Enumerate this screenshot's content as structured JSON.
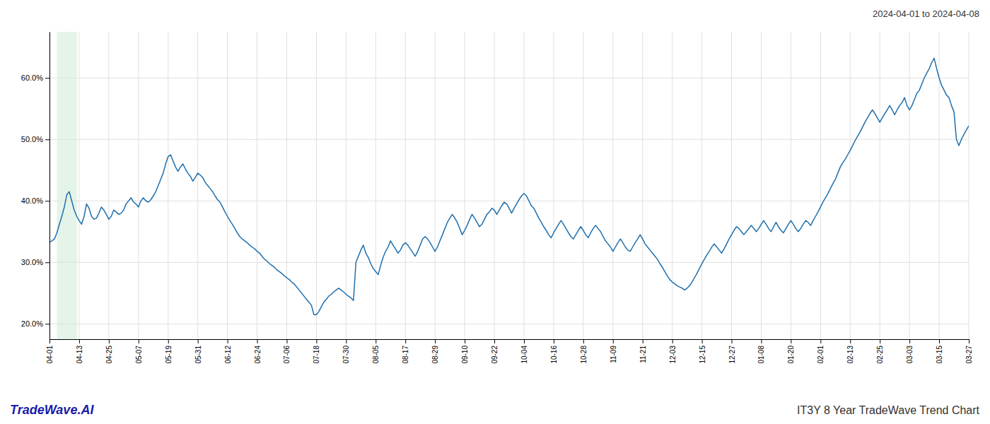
{
  "chart_data": {
    "type": "line",
    "title": "IT3Y 8 Year TradeWave Trend Chart",
    "subtitle": "2024-04-01 to 2024-04-08",
    "annotations": [
      "TradeWave.AI"
    ],
    "color": "#1f6fad",
    "grid": true,
    "ylim": [
      0.175,
      0.675
    ],
    "yticks": [
      {
        "value": 0.2,
        "label": "20.0%"
      },
      {
        "value": 0.3,
        "label": "30.0%"
      },
      {
        "value": 0.4,
        "label": "40.0%"
      },
      {
        "value": 0.5,
        "label": "50.0%"
      },
      {
        "value": 0.6,
        "label": "60.0%"
      }
    ],
    "span": [
      2.984,
      11.19
    ],
    "span_color": "#d4edda",
    "categories": [
      "04-01",
      null,
      null,
      null,
      null,
      null,
      null,
      null,
      null,
      null,
      null,
      null,
      "04-13",
      null,
      null,
      null,
      null,
      null,
      null,
      null,
      null,
      null,
      null,
      null,
      "04-25",
      null,
      null,
      null,
      null,
      null,
      null,
      null,
      null,
      null,
      null,
      null,
      "05-07",
      null,
      null,
      null,
      null,
      null,
      null,
      null,
      null,
      null,
      null,
      null,
      "05-19",
      null,
      null,
      null,
      null,
      null,
      null,
      null,
      null,
      null,
      null,
      null,
      "05-31",
      null,
      null,
      null,
      null,
      null,
      null,
      null,
      null,
      null,
      null,
      null,
      "06-12",
      null,
      null,
      null,
      null,
      null,
      null,
      null,
      null,
      null,
      null,
      null,
      "06-24",
      null,
      null,
      null,
      null,
      null,
      null,
      null,
      null,
      null,
      null,
      null,
      "07-06",
      null,
      null,
      null,
      null,
      null,
      null,
      null,
      null,
      null,
      null,
      null,
      "07-18",
      null,
      null,
      null,
      null,
      null,
      null,
      null,
      null,
      null,
      null,
      null,
      "07-30",
      null,
      null,
      null,
      null,
      null,
      null,
      null,
      null,
      null,
      null,
      null,
      "08-05",
      null,
      null,
      null,
      null,
      null,
      null,
      null,
      null,
      null,
      null,
      null,
      "08-17",
      null,
      null,
      null,
      null,
      null,
      null,
      null,
      null,
      null,
      null,
      null,
      "08-29",
      null,
      null,
      null,
      null,
      null,
      null,
      null,
      null,
      null,
      null,
      null,
      "09-10",
      null,
      null,
      null,
      null,
      null,
      null,
      null,
      null,
      null,
      null,
      null,
      "09-22",
      null,
      null,
      null,
      null,
      null,
      null,
      null,
      null,
      null,
      null,
      null,
      "10-04",
      null,
      null,
      null,
      null,
      null,
      null,
      null,
      null,
      null,
      null,
      null,
      "10-16",
      null,
      null,
      null,
      null,
      null,
      null,
      null,
      null,
      null,
      null,
      null,
      "10-28",
      null,
      null,
      null,
      null,
      null,
      null,
      null,
      null,
      null,
      null,
      null,
      "11-09",
      null,
      null,
      null,
      null,
      null,
      null,
      null,
      null,
      null,
      null,
      null,
      "11-21",
      null,
      null,
      null,
      null,
      null,
      null,
      null,
      null,
      null,
      null,
      null,
      "12-03",
      null,
      null,
      null,
      null,
      null,
      null,
      null,
      null,
      null,
      null,
      null,
      "12-15",
      null,
      null,
      null,
      null,
      null,
      null,
      null,
      null,
      null,
      null,
      null,
      "12-27",
      null,
      null,
      null,
      null,
      null,
      null,
      null,
      null,
      null,
      null,
      null,
      "01-08",
      null,
      null,
      null,
      null,
      null,
      null,
      null,
      null,
      null,
      null,
      null,
      "01-20",
      null,
      null,
      null,
      null,
      null,
      null,
      null,
      null,
      null,
      null,
      null,
      "02-01",
      null,
      null,
      null,
      null,
      null,
      null,
      null,
      null,
      null,
      null,
      null,
      "02-13",
      null,
      null,
      null,
      null,
      null,
      null,
      null,
      null,
      null,
      null,
      null,
      "02-25",
      null,
      null,
      null,
      null,
      null,
      null,
      null,
      null,
      null,
      null,
      null,
      "03-03",
      null,
      null,
      null,
      null,
      null,
      null,
      null,
      null,
      null,
      null,
      null,
      "03-15",
      null,
      null,
      null,
      null,
      null,
      null,
      null,
      null,
      null,
      null,
      null,
      "03-27"
    ],
    "values": [
      0.333,
      0.335,
      0.338,
      0.348,
      0.362,
      0.375,
      0.39,
      0.41,
      0.415,
      0.4,
      0.385,
      0.375,
      0.368,
      0.362,
      0.375,
      0.395,
      0.388,
      0.375,
      0.37,
      0.372,
      0.38,
      0.39,
      0.385,
      0.378,
      0.37,
      0.375,
      0.385,
      0.382,
      0.378,
      0.38,
      0.385,
      0.395,
      0.4,
      0.405,
      0.398,
      0.395,
      0.39,
      0.4,
      0.405,
      0.4,
      0.398,
      0.402,
      0.408,
      0.415,
      0.425,
      0.435,
      0.445,
      0.46,
      0.472,
      0.475,
      0.465,
      0.455,
      0.448,
      0.455,
      0.46,
      0.452,
      0.445,
      0.44,
      0.432,
      0.438,
      0.445,
      0.442,
      0.438,
      0.43,
      0.425,
      0.42,
      0.415,
      0.408,
      0.402,
      0.398,
      0.39,
      0.382,
      0.375,
      0.368,
      0.362,
      0.355,
      0.348,
      0.342,
      0.338,
      0.335,
      0.332,
      0.328,
      0.325,
      0.322,
      0.318,
      0.315,
      0.31,
      0.305,
      0.302,
      0.298,
      0.295,
      0.292,
      0.288,
      0.285,
      0.282,
      0.278,
      0.275,
      0.272,
      0.268,
      0.265,
      0.26,
      0.255,
      0.25,
      0.245,
      0.24,
      0.235,
      0.23,
      0.215,
      0.215,
      0.22,
      0.228,
      0.235,
      0.24,
      0.245,
      0.248,
      0.252,
      0.255,
      0.258,
      0.255,
      0.252,
      0.248,
      0.245,
      0.242,
      0.238,
      0.3,
      0.31,
      0.32,
      0.328,
      0.315,
      0.308,
      0.298,
      0.29,
      0.285,
      0.28,
      0.295,
      0.308,
      0.318,
      0.325,
      0.335,
      0.328,
      0.322,
      0.315,
      0.32,
      0.328,
      0.332,
      0.328,
      0.322,
      0.316,
      0.31,
      0.318,
      0.328,
      0.338,
      0.342,
      0.338,
      0.332,
      0.325,
      0.318,
      0.325,
      0.335,
      0.345,
      0.355,
      0.365,
      0.372,
      0.378,
      0.372,
      0.365,
      0.355,
      0.345,
      0.352,
      0.36,
      0.37,
      0.378,
      0.372,
      0.365,
      0.358,
      0.362,
      0.37,
      0.378,
      0.382,
      0.388,
      0.385,
      0.378,
      0.385,
      0.392,
      0.398,
      0.395,
      0.388,
      0.38,
      0.388,
      0.395,
      0.402,
      0.408,
      0.412,
      0.408,
      0.4,
      0.392,
      0.388,
      0.38,
      0.372,
      0.365,
      0.358,
      0.352,
      0.345,
      0.34,
      0.348,
      0.355,
      0.362,
      0.368,
      0.362,
      0.355,
      0.348,
      0.342,
      0.338,
      0.345,
      0.352,
      0.358,
      0.352,
      0.345,
      0.34,
      0.348,
      0.355,
      0.36,
      0.355,
      0.35,
      0.342,
      0.335,
      0.33,
      0.325,
      0.318,
      0.325,
      0.332,
      0.338,
      0.332,
      0.325,
      0.32,
      0.318,
      0.325,
      0.332,
      0.338,
      0.345,
      0.338,
      0.33,
      0.325,
      0.32,
      0.315,
      0.31,
      0.305,
      0.298,
      0.292,
      0.285,
      0.278,
      0.272,
      0.268,
      0.265,
      0.262,
      0.26,
      0.258,
      0.255,
      0.258,
      0.262,
      0.268,
      0.275,
      0.282,
      0.29,
      0.298,
      0.305,
      0.312,
      0.318,
      0.325,
      0.33,
      0.325,
      0.32,
      0.315,
      0.322,
      0.33,
      0.338,
      0.345,
      0.352,
      0.358,
      0.355,
      0.35,
      0.345,
      0.35,
      0.355,
      0.36,
      0.355,
      0.35,
      0.355,
      0.362,
      0.368,
      0.362,
      0.355,
      0.35,
      0.358,
      0.365,
      0.358,
      0.352,
      0.348,
      0.355,
      0.362,
      0.368,
      0.362,
      0.355,
      0.35,
      0.355,
      0.362,
      0.368,
      0.365,
      0.36,
      0.368,
      0.375,
      0.382,
      0.39,
      0.398,
      0.405,
      0.412,
      0.42,
      0.428,
      0.435,
      0.445,
      0.455,
      0.462,
      0.468,
      0.475,
      0.482,
      0.49,
      0.498,
      0.505,
      0.512,
      0.52,
      0.528,
      0.535,
      0.542,
      0.548,
      0.542,
      0.535,
      0.528,
      0.535,
      0.542,
      0.548,
      0.555,
      0.548,
      0.54,
      0.548,
      0.555,
      0.56,
      0.568,
      0.555,
      0.548,
      0.555,
      0.565,
      0.575,
      0.58,
      0.59,
      0.6,
      0.608,
      0.615,
      0.625,
      0.632,
      0.615,
      0.6,
      0.588,
      0.58,
      0.572,
      0.568,
      0.555,
      0.545,
      0.5,
      0.49,
      0.5,
      0.508,
      0.515,
      0.522
    ]
  }
}
